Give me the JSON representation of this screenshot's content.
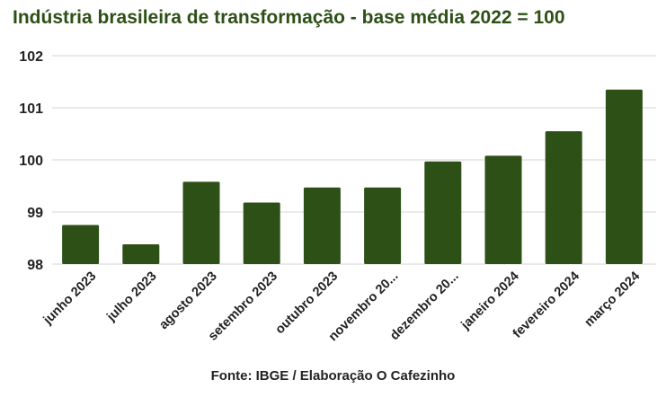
{
  "chart_data": {
    "type": "bar",
    "title": "Indústria brasileira de transformação - base média 2022 = 100",
    "source": "Fonte: IBGE / Elaboração O Cafezinho",
    "categories": [
      "junho 2023",
      "julho 2023",
      "agosto 2023",
      "setembro 2023",
      "outubro 2023",
      "novembro 20...",
      "dezembro 20...",
      "janeiro 2024",
      "fevereiro 2024",
      "março 2024"
    ],
    "values": [
      98.75,
      98.38,
      99.58,
      99.18,
      99.47,
      99.47,
      99.97,
      100.08,
      100.55,
      101.35
    ],
    "y_ticks": [
      98,
      99,
      100,
      101,
      102
    ],
    "ylim": [
      98,
      102
    ],
    "grid": true,
    "bar_color": "#2d5016"
  }
}
